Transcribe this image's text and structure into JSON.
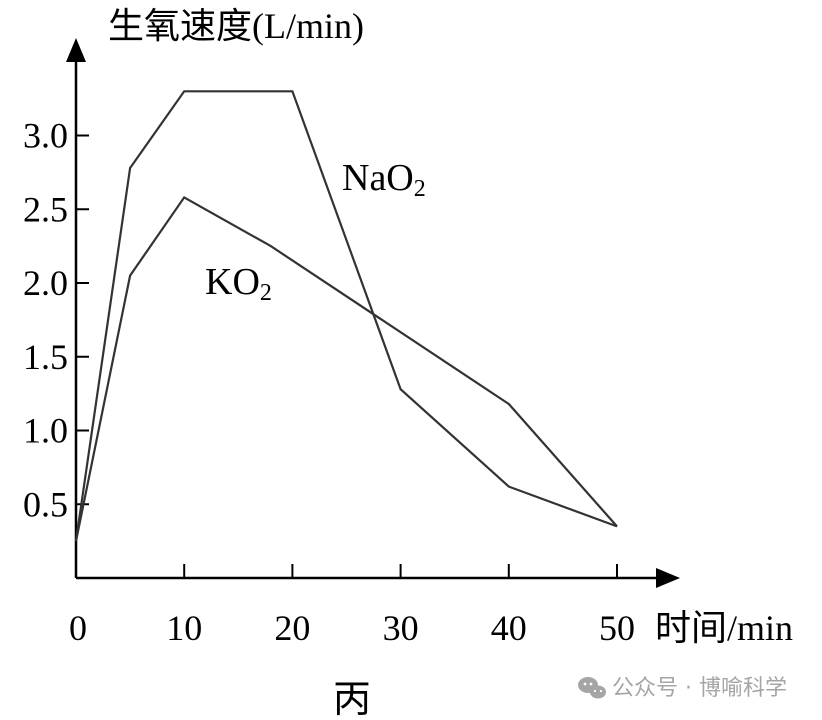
{
  "chart_data": {
    "type": "line",
    "y_axis_title": "生氧速度(L/min)",
    "x_axis_title": "时间/min",
    "figure_label": "丙",
    "x_ticks": [
      0,
      10,
      20,
      30,
      40,
      50
    ],
    "x_tick_labels": [
      "0",
      "10",
      "20",
      "30",
      "40",
      "50"
    ],
    "y_ticks": [
      0.5,
      1.0,
      1.5,
      2.0,
      2.5,
      3.0
    ],
    "y_tick_labels": [
      "0.5",
      "1.0",
      "1.5",
      "2.0",
      "2.5",
      "3.0"
    ],
    "xlim": [
      0,
      55
    ],
    "ylim": [
      0,
      3.6
    ],
    "series": [
      {
        "name": "NaO₂",
        "label_main": "NaO",
        "label_sub": "2",
        "points": [
          [
            0,
            0.25
          ],
          [
            5,
            2.78
          ],
          [
            10,
            3.3
          ],
          [
            20,
            3.3
          ],
          [
            30,
            1.28
          ],
          [
            40,
            0.62
          ],
          [
            50,
            0.35
          ]
        ]
      },
      {
        "name": "KO₂",
        "label_main": "KO",
        "label_sub": "2",
        "points": [
          [
            0,
            0.25
          ],
          [
            5,
            2.05
          ],
          [
            10,
            2.58
          ],
          [
            18,
            2.25
          ],
          [
            40,
            1.18
          ],
          [
            50,
            0.35
          ]
        ]
      }
    ],
    "grid": false,
    "legend": "inline labels"
  },
  "watermark": {
    "text": "公众号 · 博喻科学",
    "icon": "wechat-icon"
  },
  "colors": {
    "line": "#333333",
    "axis": "#000000",
    "watermark": "#a5a5a5"
  }
}
